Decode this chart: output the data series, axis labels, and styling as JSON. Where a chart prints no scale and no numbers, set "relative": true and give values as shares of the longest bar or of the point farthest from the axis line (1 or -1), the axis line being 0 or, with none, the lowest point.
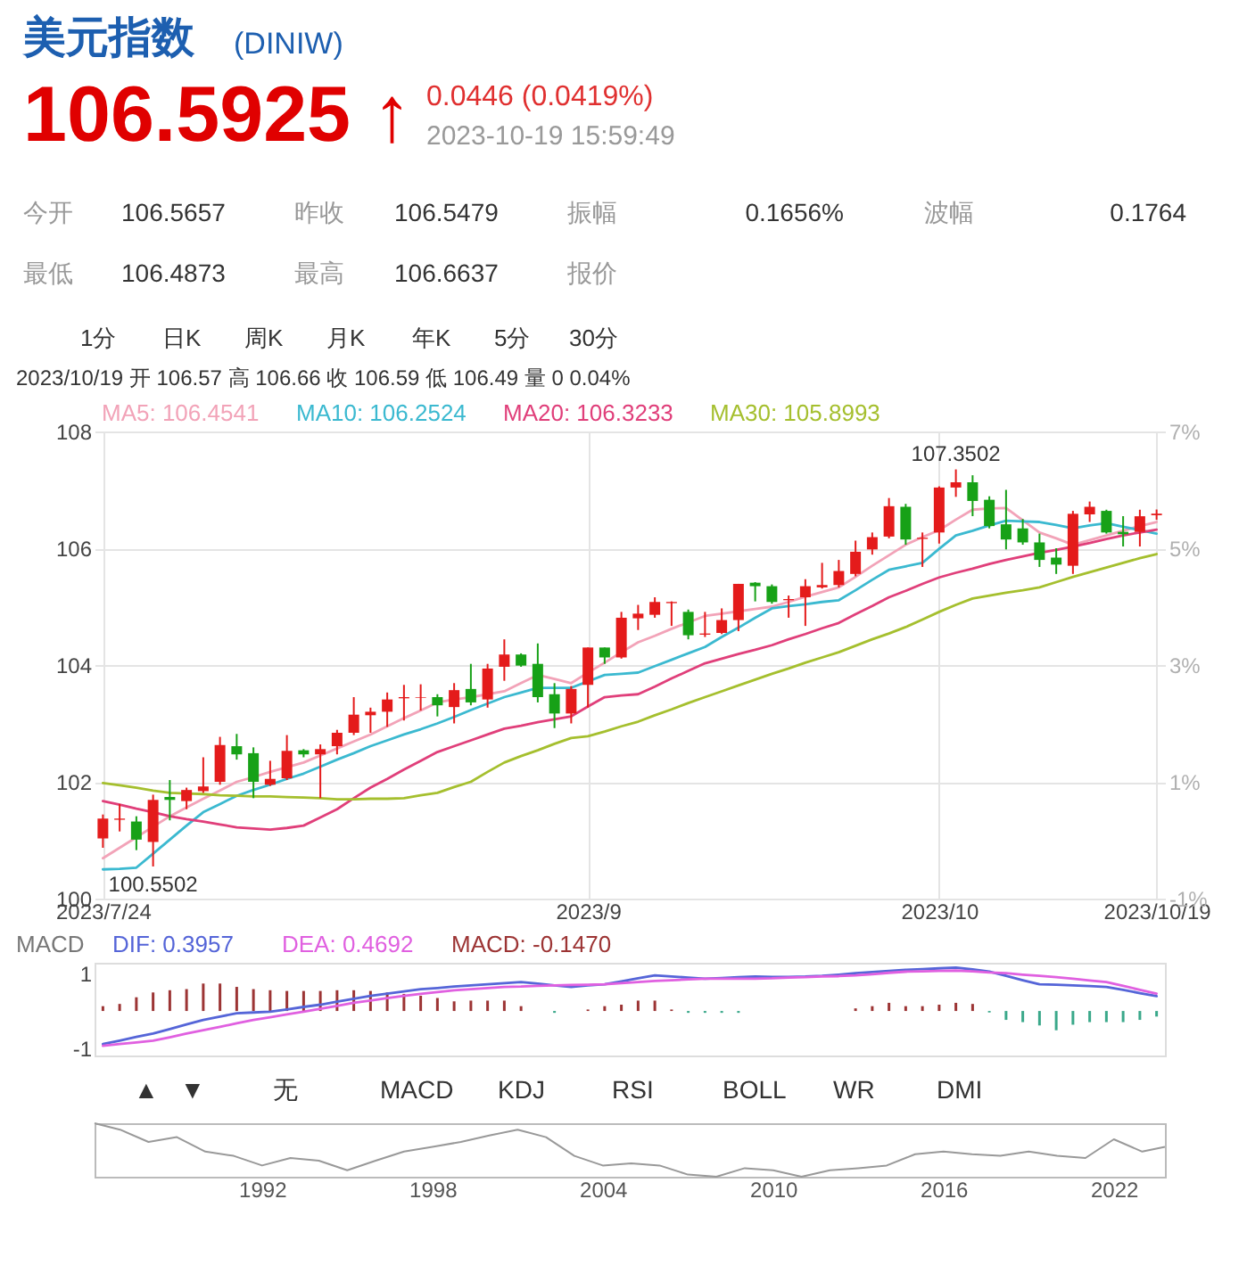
{
  "chart_data": [
    {
      "type": "other",
      "title": "美元指数",
      "subtitle": "(DINIW)",
      "annotations": [
        "106.5925 ↑",
        "0.0446 (0.0419%)",
        "2023-10-19 15:59:49",
        "今开",
        "106.5657",
        "昨收",
        "106.5479",
        "振幅",
        "0.1656%",
        "波幅",
        "0.1764",
        "最低",
        "106.4873",
        "最高",
        "106.6637",
        "报价",
        "1分",
        "日K",
        "周K",
        "月K",
        "年K",
        "5分",
        "30分"
      ]
    },
    {
      "type": "candlestick",
      "subtitle": "2023/10/19 开 106.57 高 106.66 收 106.59 低 106.49 量 0 0.04%",
      "categories": [
        "2023/7/24",
        null,
        null,
        null,
        null,
        null,
        null,
        null,
        null,
        null,
        null,
        null,
        null,
        null,
        null,
        null,
        null,
        null,
        null,
        null,
        null,
        null,
        null,
        null,
        null,
        null,
        null,
        null,
        null,
        "2023/9",
        null,
        null,
        null,
        null,
        null,
        null,
        null,
        null,
        null,
        null,
        null,
        null,
        null,
        null,
        null,
        null,
        null,
        null,
        null,
        null,
        "2023/10",
        null,
        null,
        null,
        null,
        null,
        null,
        null,
        null,
        null,
        null,
        null,
        null,
        "2023/10/19"
      ],
      "ohlc": [
        [
          101.03,
          101.44,
          100.87,
          101.37
        ],
        [
          101.35,
          101.62,
          101.15,
          101.37
        ],
        [
          101.32,
          101.41,
          100.83,
          101.01
        ],
        [
          100.97,
          101.78,
          100.5502,
          101.69
        ],
        [
          101.74,
          102.03,
          101.34,
          101.69
        ],
        [
          101.67,
          101.9,
          101.53,
          101.86
        ],
        [
          101.84,
          102.42,
          101.81,
          101.92
        ],
        [
          102.0,
          102.77,
          101.95,
          102.63
        ],
        [
          102.61,
          102.82,
          102.38,
          102.47
        ],
        [
          102.49,
          102.59,
          101.72,
          102.0
        ],
        [
          101.95,
          102.36,
          101.93,
          102.05
        ],
        [
          102.06,
          102.8,
          102.03,
          102.53
        ],
        [
          102.54,
          102.56,
          102.42,
          102.47
        ],
        [
          102.47,
          102.64,
          101.72,
          102.56
        ],
        [
          102.61,
          102.89,
          102.47,
          102.84
        ],
        [
          102.84,
          103.45,
          102.8,
          103.15
        ],
        [
          103.14,
          103.27,
          102.84,
          103.2
        ],
        [
          103.2,
          103.53,
          102.94,
          103.41
        ],
        [
          103.43,
          103.66,
          103.05,
          103.45
        ],
        [
          103.44,
          103.67,
          103.22,
          103.45
        ],
        [
          103.45,
          103.5,
          103.12,
          103.31
        ],
        [
          103.28,
          103.69,
          103.0,
          103.57
        ],
        [
          103.59,
          104.02,
          103.31,
          103.36
        ],
        [
          103.41,
          104.02,
          103.27,
          103.94
        ],
        [
          103.97,
          104.44,
          103.73,
          104.18
        ],
        [
          104.18,
          104.2,
          103.97,
          103.99
        ],
        [
          104.02,
          104.37,
          103.36,
          103.45
        ],
        [
          103.5,
          103.69,
          102.92,
          103.17
        ],
        [
          103.17,
          103.64,
          103.0,
          103.59
        ],
        [
          103.66,
          104.3,
          103.27,
          104.3
        ],
        [
          104.3,
          104.3,
          104.02,
          104.13
        ],
        [
          104.13,
          104.91,
          104.11,
          104.81
        ],
        [
          104.8,
          105.03,
          104.6,
          104.88
        ],
        [
          104.86,
          105.16,
          104.81,
          105.08
        ],
        [
          105.06,
          105.09,
          104.67,
          105.08
        ],
        [
          104.91,
          104.95,
          104.44,
          104.51
        ],
        [
          104.52,
          104.91,
          104.48,
          104.54
        ],
        [
          104.55,
          104.97,
          104.53,
          104.77
        ],
        [
          104.77,
          105.39,
          104.58,
          105.39
        ],
        [
          105.41,
          105.42,
          105.09,
          105.35
        ],
        [
          105.35,
          105.38,
          105.05,
          105.08
        ],
        [
          105.11,
          105.19,
          104.81,
          105.13
        ],
        [
          105.16,
          105.47,
          104.67,
          105.35
        ],
        [
          105.33,
          105.75,
          105.31,
          105.37
        ],
        [
          105.37,
          105.8,
          105.33,
          105.61
        ],
        [
          105.56,
          106.13,
          105.52,
          105.94
        ],
        [
          105.98,
          106.27,
          105.89,
          106.19
        ],
        [
          106.2,
          106.86,
          106.17,
          106.72
        ],
        [
          106.71,
          106.76,
          106.06,
          106.15
        ],
        [
          106.16,
          106.27,
          105.68,
          106.18
        ],
        [
          106.27,
          107.06,
          106.08,
          107.04
        ],
        [
          107.04,
          107.3502,
          106.88,
          107.13
        ],
        [
          107.13,
          107.25,
          106.55,
          106.81
        ],
        [
          106.83,
          106.89,
          106.34,
          106.38
        ],
        [
          106.41,
          107.0,
          105.98,
          106.15
        ],
        [
          106.34,
          106.5,
          106.06,
          106.1
        ],
        [
          106.1,
          106.25,
          105.68,
          105.8
        ],
        [
          105.84,
          106.0,
          105.56,
          105.72
        ],
        [
          105.7,
          106.64,
          105.56,
          106.59
        ],
        [
          106.58,
          106.8,
          106.45,
          106.71
        ],
        [
          106.64,
          106.66,
          106.25,
          106.27
        ],
        [
          106.28,
          106.55,
          106.03,
          106.24
        ],
        [
          106.28,
          106.66,
          106.03,
          106.5479
        ],
        [
          106.5657,
          106.6637,
          106.4873,
          106.5925
        ]
      ],
      "colors": [
        "#e41b1b",
        "#e41b1b",
        "#17a117",
        "#e41b1b",
        "#17a117",
        "#e41b1b",
        "#e41b1b",
        "#e41b1b",
        "#17a117",
        "#17a117",
        "#e41b1b",
        "#e41b1b",
        "#17a117",
        "#e41b1b",
        "#e41b1b",
        "#e41b1b",
        "#e41b1b",
        "#e41b1b",
        "#e41b1b",
        "#e41b1b",
        "#17a117",
        "#e41b1b",
        "#17a117",
        "#e41b1b",
        "#e41b1b",
        "#17a117",
        "#17a117",
        "#17a117",
        "#e41b1b",
        "#e41b1b",
        "#17a117",
        "#e41b1b",
        "#e41b1b",
        "#e41b1b",
        "#e41b1b",
        "#17a117",
        "#e41b1b",
        "#e41b1b",
        "#e41b1b",
        "#17a117",
        "#17a117",
        "#e41b1b",
        "#e41b1b",
        "#e41b1b",
        "#e41b1b",
        "#e41b1b",
        "#e41b1b",
        "#e41b1b",
        "#17a117",
        "#e41b1b",
        "#e41b1b",
        "#e41b1b",
        "#17a117",
        "#17a117",
        "#17a117",
        "#17a117",
        "#17a117",
        "#17a117",
        "#e41b1b",
        "#e41b1b",
        "#17a117",
        "#17a117",
        "#e41b1b",
        "#e41b1b"
      ],
      "series": [
        {
          "type": "line",
          "name": "MA5: 106.4541",
          "color": "#f2a3b8",
          "values": [
            100.69,
            100.87,
            101.05,
            101.23,
            101.41,
            101.56,
            101.71,
            101.85,
            102.0,
            102.08,
            102.17,
            102.25,
            102.33,
            102.45,
            102.57,
            102.69,
            102.81,
            102.95,
            103.09,
            103.22,
            103.36,
            103.41,
            103.45,
            103.5,
            103.55,
            103.69,
            103.83,
            103.76,
            103.69,
            103.87,
            104.04,
            104.22,
            104.39,
            104.5,
            104.62,
            104.73,
            104.84,
            104.88,
            104.92,
            104.96,
            105.0,
            105.08,
            105.17,
            105.25,
            105.33,
            105.51,
            105.7,
            105.88,
            106.06,
            106.19,
            106.31,
            106.49,
            106.66,
            106.68,
            106.69,
            106.48,
            106.27,
            106.17,
            106.06,
            106.14,
            106.22,
            106.3,
            106.38,
            106.45
          ]
        },
        {
          "type": "line",
          "name": "MA10: 106.2524",
          "color": "#3bb9d0",
          "values": [
            100.5,
            100.51,
            100.53,
            100.77,
            101.01,
            101.25,
            101.48,
            101.62,
            101.76,
            101.86,
            101.95,
            102.05,
            102.14,
            102.26,
            102.38,
            102.49,
            102.61,
            102.71,
            102.81,
            102.9,
            103.0,
            103.11,
            103.23,
            103.34,
            103.45,
            103.53,
            103.61,
            103.61,
            103.61,
            103.72,
            103.83,
            103.85,
            103.87,
            103.98,
            104.09,
            104.2,
            104.31,
            104.48,
            104.64,
            104.81,
            104.97,
            105.01,
            105.04,
            105.08,
            105.11,
            105.28,
            105.46,
            105.63,
            105.69,
            105.75,
            105.99,
            106.22,
            106.3,
            106.39,
            106.47,
            106.46,
            106.45,
            106.4,
            106.34,
            106.39,
            106.43,
            106.37,
            106.31,
            106.25
          ]
        },
        {
          "type": "line",
          "name": "MA20: 106.3233",
          "color": "#e03f7a",
          "values": [
            101.67,
            101.61,
            101.54,
            101.48,
            101.41,
            101.36,
            101.32,
            101.27,
            101.22,
            101.2,
            101.18,
            101.21,
            101.25,
            101.39,
            101.53,
            101.72,
            101.9,
            102.05,
            102.21,
            102.36,
            102.51,
            102.61,
            102.71,
            102.81,
            102.91,
            102.96,
            103.02,
            103.07,
            103.12,
            103.29,
            103.45,
            103.48,
            103.5,
            103.63,
            103.77,
            103.9,
            104.03,
            104.11,
            104.19,
            104.26,
            104.34,
            104.44,
            104.53,
            104.63,
            104.72,
            104.87,
            105.01,
            105.16,
            105.27,
            105.39,
            105.5,
            105.58,
            105.65,
            105.73,
            105.8,
            105.86,
            105.92,
            105.97,
            106.03,
            106.09,
            106.16,
            106.22,
            106.27,
            106.32
          ]
        },
        {
          "type": "line",
          "name": "MA30: 105.8993",
          "color": "#a5bf2e",
          "values": [
            101.98,
            101.94,
            101.9,
            101.85,
            101.81,
            101.8,
            101.79,
            101.77,
            101.76,
            101.75,
            101.75,
            101.74,
            101.73,
            101.72,
            101.7,
            101.7,
            101.71,
            101.71,
            101.72,
            101.77,
            101.81,
            101.91,
            102.0,
            102.17,
            102.33,
            102.44,
            102.54,
            102.65,
            102.75,
            102.78,
            102.86,
            102.95,
            103.03,
            103.14,
            103.24,
            103.35,
            103.45,
            103.55,
            103.65,
            103.75,
            103.85,
            103.94,
            104.04,
            104.13,
            104.22,
            104.33,
            104.44,
            104.54,
            104.65,
            104.78,
            104.91,
            105.03,
            105.14,
            105.19,
            105.24,
            105.28,
            105.33,
            105.42,
            105.51,
            105.59,
            105.67,
            105.75,
            105.83,
            105.9
          ]
        }
      ],
      "annotations": [
        {
          "text": "107.3502",
          "y": 107.3502
        },
        {
          "text": "100.5502",
          "y": 100.5502
        }
      ],
      "ylim": [
        100,
        108
      ],
      "yticks": [
        100,
        102,
        104,
        106,
        108
      ],
      "y2lim": [
        -1,
        7
      ],
      "y2ticks": [
        {
          "value": -1,
          "label": "-1%"
        },
        {
          "value": 1,
          "label": "1%"
        },
        {
          "value": 3,
          "label": "3%"
        },
        {
          "value": 5,
          "label": "5%"
        },
        {
          "value": 7,
          "label": "7%"
        }
      ],
      "grid": true,
      "legend": "top left"
    },
    {
      "type": "bar",
      "title": "MACD",
      "categories": [
        null,
        null,
        null,
        null,
        null,
        null,
        null,
        null,
        null,
        null,
        null,
        null,
        null,
        null,
        null,
        null,
        null,
        null,
        null,
        null,
        null,
        null,
        null,
        null,
        null,
        null,
        null,
        null,
        null,
        null,
        null,
        null,
        null,
        null,
        null,
        null,
        null,
        null,
        null,
        null,
        null,
        null,
        null,
        null,
        null,
        null,
        null,
        null,
        null,
        null,
        null,
        null,
        null,
        null,
        null,
        null,
        null,
        null,
        null,
        null,
        null,
        null,
        null,
        null
      ],
      "series": [
        {
          "type": "line",
          "name": "DIF: 0.3957",
          "color": "#5565d8",
          "values": [
            -0.89,
            -0.8,
            -0.7,
            -0.61,
            -0.49,
            -0.36,
            -0.24,
            -0.15,
            -0.06,
            -0.04,
            -0.02,
            0.04,
            0.11,
            0.17,
            0.25,
            0.33,
            0.41,
            0.47,
            0.53,
            0.59,
            0.62,
            0.66,
            0.69,
            0.72,
            0.75,
            0.78,
            0.74,
            0.69,
            0.65,
            0.69,
            0.72,
            0.8,
            0.88,
            0.96,
            0.93,
            0.9,
            0.87,
            0.89,
            0.91,
            0.93,
            0.92,
            0.92,
            0.93,
            0.95,
            0.98,
            1.02,
            1.05,
            1.08,
            1.11,
            1.13,
            1.15,
            1.17,
            1.12,
            1.06,
            0.95,
            0.83,
            0.72,
            0.71,
            0.69,
            0.67,
            0.65,
            0.57,
            0.48,
            0.4
          ]
        },
        {
          "type": "line",
          "name": "DEA: 0.4692",
          "color": "#e060e0",
          "values": [
            -0.94,
            -0.89,
            -0.85,
            -0.8,
            -0.71,
            -0.61,
            -0.52,
            -0.43,
            -0.33,
            -0.24,
            -0.17,
            -0.09,
            -0.02,
            0.06,
            0.14,
            0.22,
            0.28,
            0.35,
            0.41,
            0.46,
            0.51,
            0.56,
            0.59,
            0.62,
            0.65,
            0.66,
            0.68,
            0.69,
            0.7,
            0.71,
            0.72,
            0.75,
            0.78,
            0.81,
            0.83,
            0.85,
            0.87,
            0.87,
            0.87,
            0.87,
            0.88,
            0.9,
            0.91,
            0.93,
            0.94,
            0.96,
            0.99,
            1.03,
            1.06,
            1.07,
            1.08,
            1.09,
            1.07,
            1.04,
            1.02,
            0.98,
            0.95,
            0.91,
            0.87,
            0.82,
            0.78,
            0.68,
            0.57,
            0.47
          ]
        },
        {
          "type": "bar",
          "name": "MACD: -0.1470",
          "color": "#9c3434",
          "values": [
            0.13,
            0.19,
            0.37,
            0.5,
            0.56,
            0.59,
            0.74,
            0.74,
            0.65,
            0.59,
            0.56,
            0.54,
            0.54,
            0.54,
            0.56,
            0.56,
            0.54,
            0.5,
            0.46,
            0.41,
            0.35,
            0.26,
            0.28,
            0.28,
            0.28,
            0.13,
            null,
            -0.05,
            null,
            0.04,
            0.13,
            0.17,
            0.28,
            0.28,
            0.04,
            -0.05,
            -0.05,
            -0.05,
            -0.05,
            null,
            null,
            null,
            null,
            null,
            null,
            0.07,
            0.13,
            0.22,
            0.13,
            0.13,
            0.17,
            0.22,
            0.19,
            -0.04,
            -0.24,
            -0.3,
            -0.39,
            -0.52,
            -0.37,
            -0.3,
            -0.3,
            -0.3,
            -0.24,
            -0.15
          ],
          "colors": [
            "#9c3434",
            "#9c3434",
            "#9c3434",
            "#9c3434",
            "#9c3434",
            "#9c3434",
            "#9c3434",
            "#9c3434",
            "#9c3434",
            "#9c3434",
            "#9c3434",
            "#9c3434",
            "#9c3434",
            "#9c3434",
            "#9c3434",
            "#9c3434",
            "#9c3434",
            "#9c3434",
            "#9c3434",
            "#9c3434",
            "#9c3434",
            "#9c3434",
            "#9c3434",
            "#9c3434",
            "#9c3434",
            "#9c3434",
            "#9c3434",
            "#3aa88a",
            "#9c3434",
            "#9c3434",
            "#9c3434",
            "#9c3434",
            "#9c3434",
            "#9c3434",
            "#9c3434",
            "#3aa88a",
            "#3aa88a",
            "#3aa88a",
            "#3aa88a",
            "#9c3434",
            "#9c3434",
            "#9c3434",
            "#9c3434",
            "#9c3434",
            "#9c3434",
            "#9c3434",
            "#9c3434",
            "#9c3434",
            "#9c3434",
            "#9c3434",
            "#9c3434",
            "#9c3434",
            "#9c3434",
            "#3aa88a",
            "#3aa88a",
            "#3aa88a",
            "#3aa88a",
            "#3aa88a",
            "#3aa88a",
            "#3aa88a",
            "#3aa88a",
            "#3aa88a",
            "#3aa88a",
            "#3aa88a"
          ]
        }
      ],
      "ylim": [
        -1.2,
        1.3
      ],
      "yticks": [
        -1,
        1
      ],
      "tick_labels": "y",
      "legend": "top left"
    },
    {
      "type": "other",
      "annotations": [
        "▲",
        "▼",
        "无",
        "MACD",
        "KDJ",
        "RSI",
        "BOLL",
        "WR",
        "DMI"
      ]
    },
    {
      "type": "line",
      "relative": true,
      "color": "#999999",
      "x": [
        1986.1,
        1987,
        1988,
        1989,
        1990,
        1991,
        1992,
        1993,
        1994,
        1995,
        1996,
        1997,
        1998,
        1999,
        2000,
        2001,
        2002,
        2003,
        2004,
        2005,
        2006,
        2007,
        2008,
        2009,
        2010,
        2011,
        2012,
        2013,
        2014,
        2015,
        2016,
        2017,
        2018,
        2019,
        2020,
        2021,
        2022,
        2023,
        2023.8
      ],
      "values": [
        1,
        0.88,
        0.65,
        0.74,
        0.47,
        0.39,
        0.21,
        0.35,
        0.3,
        0.12,
        0.3,
        0.47,
        0.56,
        0.65,
        0.77,
        0.88,
        0.74,
        0.39,
        0.21,
        0.25,
        0.21,
        0.04,
        0,
        0.16,
        0.12,
        0,
        0.12,
        0.16,
        0.21,
        0.42,
        0.47,
        0.42,
        0.39,
        0.47,
        0.39,
        0.35,
        0.7,
        0.47,
        0.56
      ],
      "xlim": [
        1986.1,
        2023.8
      ],
      "xticks": [
        1992,
        1998,
        2004,
        2010,
        2016,
        2022
      ],
      "tick_labels": "x"
    }
  ]
}
